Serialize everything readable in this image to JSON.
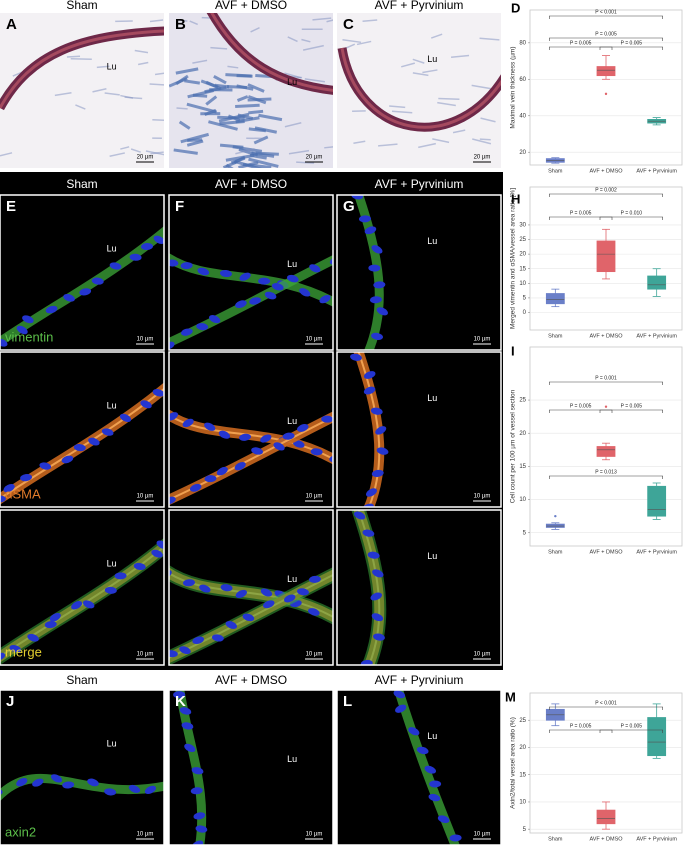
{
  "figure": {
    "top_headers": [
      "Sham",
      "AVF + DMSO",
      "AVF + Pyrvinium"
    ],
    "middle_headers": [
      "Sham",
      "AVF + DMSO",
      "AVF + Pyrvinium"
    ],
    "bottom_headers": [
      "Sham",
      "AVF + DMSO",
      "AVF + Pyrvinium"
    ],
    "panels": [
      {
        "label": "A",
        "lumen": "Lu",
        "scale": "20 µm"
      },
      {
        "label": "B",
        "lumen": "Lu",
        "scale": "20 µm"
      },
      {
        "label": "C",
        "lumen": "Lu",
        "scale": "20 µm"
      },
      {
        "label": "E",
        "lumen": "Lu",
        "scale": "10 µm",
        "stain": "vimentin"
      },
      {
        "label": "F",
        "lumen": "Lu",
        "scale": "10 µm"
      },
      {
        "label": "G",
        "lumen": "Lu",
        "scale": "10 µm"
      },
      {
        "lumen": "Lu",
        "scale": "10 µm",
        "stain": "αSMA"
      },
      {
        "lumen": "Lu",
        "scale": "10 µm"
      },
      {
        "lumen": "Lu",
        "scale": "10 µm"
      },
      {
        "lumen": "Lu",
        "scale": "10 µm",
        "stain": "merge"
      },
      {
        "lumen": "Lu",
        "scale": "10 µm"
      },
      {
        "lumen": "Lu",
        "scale": "10 µm"
      },
      {
        "label": "J",
        "lumen": "Lu",
        "scale": "10 µm",
        "stain": "axin2"
      },
      {
        "label": "K",
        "lumen": "Lu",
        "scale": "10 µm"
      },
      {
        "label": "L",
        "lumen": "Lu",
        "scale": "10 µm"
      }
    ]
  },
  "chart_data": [
    {
      "type": "box",
      "label": "D",
      "ylabel": "Maximal vein thickness (µm)",
      "categories": [
        "Sham",
        "AVF + DMSO",
        "AVF + Pyrvinium"
      ],
      "colors": [
        "#6a7fc8",
        "#e0646a",
        "#3ea598"
      ],
      "boxes": [
        {
          "whislo": 14,
          "q1": 14.5,
          "med": 15.5,
          "q3": 16.5,
          "whishi": 17,
          "fliers": []
        },
        {
          "whislo": 60,
          "q1": 62,
          "med": 65,
          "q3": 67,
          "whishi": 73,
          "fliers": [
            52
          ]
        },
        {
          "whislo": 35,
          "q1": 36,
          "med": 37,
          "q3": 38,
          "whishi": 39,
          "fliers": []
        }
      ],
      "ylim": [
        13,
        98
      ],
      "yticks": [
        20,
        40,
        60,
        80
      ],
      "grid": true,
      "annotations": [
        "P < 0.001",
        "P = 0.005",
        "P = 0.005",
        "P = 0.005"
      ]
    },
    {
      "type": "box",
      "label": "H",
      "ylabel": "Merged vimentin and αSMA/vessel area ratio [%]",
      "categories": [
        "Sham",
        "AVF + DMSO",
        "AVF + Pyrvinium"
      ],
      "colors": [
        "#6a7fc8",
        "#e0646a",
        "#3ea598"
      ],
      "boxes": [
        {
          "whislo": 2,
          "q1": 3,
          "med": 4.5,
          "q3": 6.5,
          "whishi": 8,
          "fliers": []
        },
        {
          "whislo": 11.5,
          "q1": 14,
          "med": 20,
          "q3": 24.5,
          "whishi": 28.5,
          "fliers": []
        },
        {
          "whislo": 5.5,
          "q1": 8,
          "med": 9.5,
          "q3": 12.5,
          "whishi": 15,
          "fliers": []
        }
      ],
      "ylim": [
        -6,
        43
      ],
      "yticks": [
        0,
        5,
        10,
        15,
        20,
        25,
        30
      ],
      "grid": true,
      "annotations": [
        "P = 0.002",
        "P = 0.005",
        "P = 0.010"
      ]
    },
    {
      "type": "box",
      "label": "I",
      "ylabel": "Cell count per 100 µm of vessel section",
      "categories": [
        "Sham",
        "AVF + DMSO",
        "AVF + Pyrvinium"
      ],
      "colors": [
        "#6a7fc8",
        "#e0646a",
        "#3ea598"
      ],
      "boxes": [
        {
          "whislo": 5.5,
          "q1": 5.8,
          "med": 6,
          "q3": 6.3,
          "whishi": 6.5,
          "fliers": [
            7.5
          ]
        },
        {
          "whislo": 16,
          "q1": 16.5,
          "med": 17.5,
          "q3": 18,
          "whishi": 18.5,
          "fliers": [
            24
          ]
        },
        {
          "whislo": 7,
          "q1": 7.5,
          "med": 8.5,
          "q3": 12,
          "whishi": 12.5,
          "fliers": []
        }
      ],
      "ylim": [
        3,
        33
      ],
      "yticks": [
        5,
        10,
        15,
        20,
        25
      ],
      "grid": true,
      "annotations": [
        "P = 0.001",
        "P = 0.005",
        "P = 0.005",
        "P = 0.013"
      ]
    },
    {
      "type": "box",
      "label": "M",
      "ylabel": "Axin2/total vessel area ratio (%)",
      "categories": [
        "Sham",
        "AVF + DMSO",
        "AVF + Pyrvinium"
      ],
      "colors": [
        "#6a7fc8",
        "#e0646a",
        "#3ea598"
      ],
      "boxes": [
        {
          "whislo": 24,
          "q1": 25,
          "med": 26,
          "q3": 27,
          "whishi": 28,
          "fliers": []
        },
        {
          "whislo": 5,
          "q1": 6,
          "med": 7,
          "q3": 8.5,
          "whishi": 10,
          "fliers": []
        },
        {
          "whislo": 18,
          "q1": 18.5,
          "med": 21,
          "q3": 25.5,
          "whishi": 28,
          "fliers": []
        }
      ],
      "ylim": [
        4.3,
        30
      ],
      "yticks": [
        5,
        10,
        15,
        20,
        25
      ],
      "grid": true,
      "annotations": [
        "P < 0.001",
        "P = 0.005",
        "P = 0.005"
      ]
    }
  ]
}
